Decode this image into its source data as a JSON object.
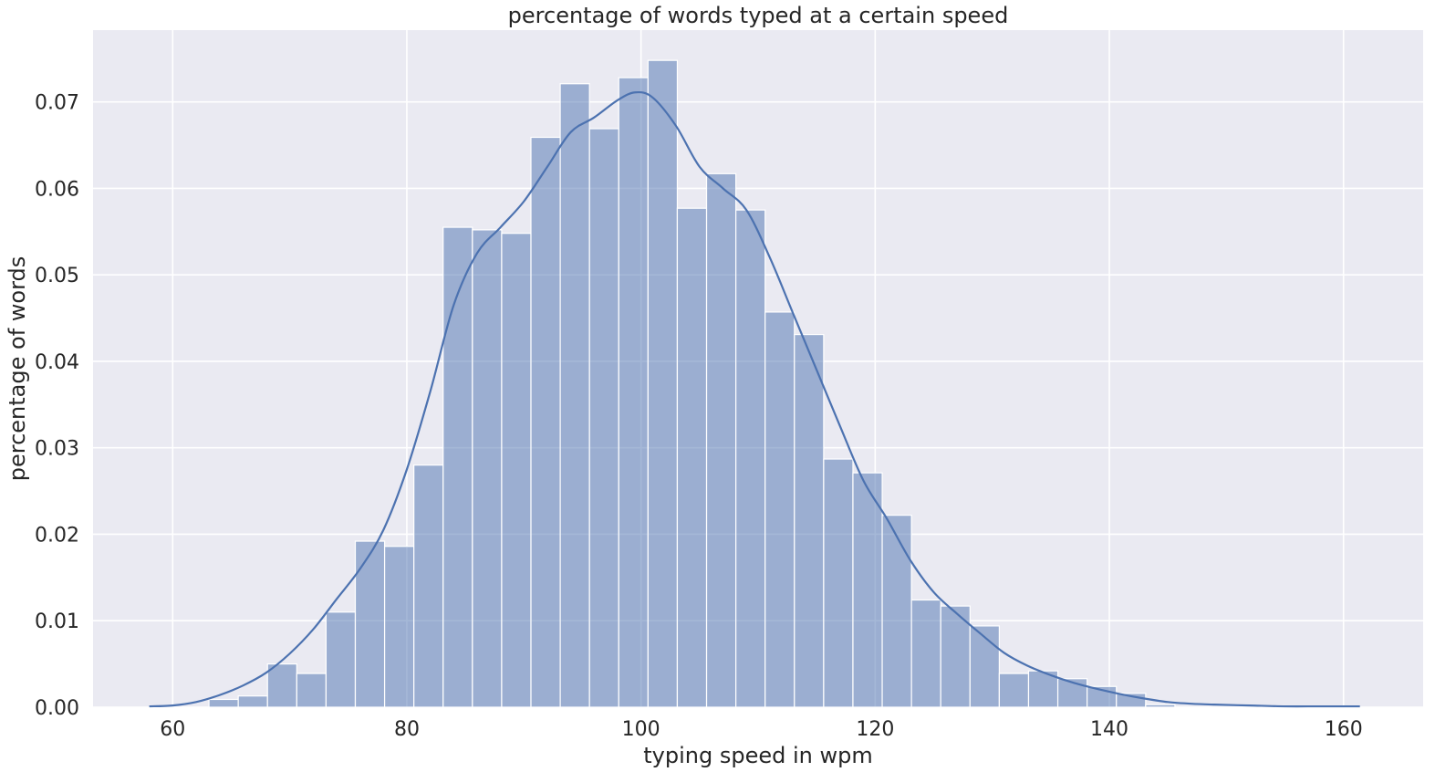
{
  "chart_data": {
    "type": "bar",
    "title": "percentage of words typed at a certain speed",
    "xlabel": "typing speed in wpm",
    "ylabel": "percentage of words",
    "xlim": [
      53.2,
      166.8
    ],
    "ylim": [
      0,
      0.0783
    ],
    "grid": true,
    "x_ticks": [
      60,
      80,
      100,
      120,
      140,
      160
    ],
    "x_tick_labels": [
      "60",
      "80",
      "100",
      "120",
      "140",
      "160"
    ],
    "y_ticks": [
      0.0,
      0.01,
      0.02,
      0.03,
      0.04,
      0.05,
      0.06,
      0.07
    ],
    "y_tick_labels": [
      "0.00",
      "0.01",
      "0.02",
      "0.03",
      "0.04",
      "0.05",
      "0.06",
      "0.07"
    ],
    "bin_edges": [
      63.1,
      65.6,
      68.1,
      70.6,
      73.1,
      75.6,
      78.1,
      80.6,
      83.1,
      85.6,
      88.1,
      90.6,
      93.1,
      95.6,
      98.1,
      100.6,
      103.1,
      105.6,
      108.1,
      110.6,
      113.1,
      115.6,
      118.1,
      120.6,
      123.1,
      125.6,
      128.1,
      130.6,
      133.1,
      135.6,
      138.1,
      140.6,
      143.1,
      145.6
    ],
    "values": [
      0.0009,
      0.0013,
      0.005,
      0.0039,
      0.011,
      0.0192,
      0.0186,
      0.028,
      0.0555,
      0.0552,
      0.0548,
      0.0659,
      0.0721,
      0.0669,
      0.0728,
      0.0748,
      0.0577,
      0.0617,
      0.0575,
      0.0457,
      0.0431,
      0.0287,
      0.0271,
      0.0222,
      0.0124,
      0.0117,
      0.0094,
      0.0039,
      0.0042,
      0.0033,
      0.0024,
      0.0016,
      0.0003
    ],
    "kde": {
      "x": [
        58,
        60,
        62,
        64,
        66,
        68,
        70,
        72,
        74,
        76,
        78,
        80,
        82,
        84,
        86,
        88,
        90,
        92,
        94,
        96,
        98,
        99.5,
        101,
        103,
        105,
        107,
        109,
        111,
        113,
        115,
        117,
        119,
        121,
        123,
        125,
        127,
        129,
        131,
        133,
        135,
        137,
        139,
        141,
        143,
        145,
        147,
        149,
        152,
        155,
        158,
        161.4
      ],
      "y": [
        0.0001,
        0.0002,
        0.0006,
        0.0014,
        0.0025,
        0.004,
        0.0062,
        0.009,
        0.0125,
        0.016,
        0.0205,
        0.0275,
        0.0365,
        0.0465,
        0.0525,
        0.0555,
        0.0585,
        0.0625,
        0.0665,
        0.0682,
        0.0702,
        0.0711,
        0.0705,
        0.0672,
        0.0625,
        0.06,
        0.0575,
        0.052,
        0.0455,
        0.039,
        0.0325,
        0.0262,
        0.0218,
        0.017,
        0.0133,
        0.0108,
        0.0085,
        0.0063,
        0.0048,
        0.0037,
        0.0028,
        0.0021,
        0.0015,
        0.001,
        0.0006,
        0.0004,
        0.0003,
        0.0002,
        0.0001,
        0.0001,
        0.0001
      ]
    },
    "colors": {
      "background": "#eaeaf2",
      "bar_fill": "#4c72b0",
      "bar_opacity": 0.5,
      "kde_line": "#4c72b0",
      "grid": "#ffffff"
    }
  }
}
